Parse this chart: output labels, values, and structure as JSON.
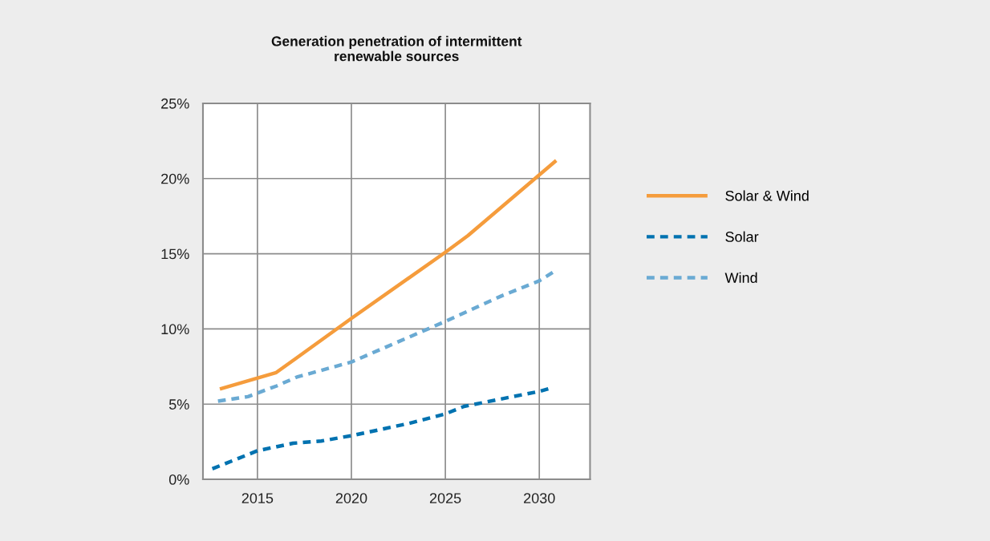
{
  "chart_data": {
    "type": "line",
    "title": "Generation penetration of intermittent\nrenewable sources",
    "xlim": [
      2012.1,
      2032.7
    ],
    "xticks": [
      2015,
      2020,
      2025,
      2030
    ],
    "ylim": [
      0,
      25
    ],
    "yticks": [
      {
        "value": 0,
        "label": "0%"
      },
      {
        "value": 5,
        "label": "5%"
      },
      {
        "value": 10,
        "label": "10%"
      },
      {
        "value": 15,
        "label": "15%"
      },
      {
        "value": 20,
        "label": "20%"
      },
      {
        "value": 25,
        "label": "25%"
      }
    ],
    "grid": true,
    "legend": "right",
    "marker": "none",
    "series": [
      {
        "name": "Solar & Wind",
        "color": "#f59c3c",
        "line_style": "solid",
        "x": [
          2013,
          2016,
          2017,
          2020,
          2025,
          2026.2,
          2030.9
        ],
        "values": [
          6.0,
          7.1,
          8.0,
          10.7,
          15.1,
          16.2,
          21.2
        ]
      },
      {
        "name": "Solar",
        "color": "#0072b0",
        "line_style": "dashed",
        "x": [
          2012.6,
          2015,
          2016.9,
          2018.4,
          2020,
          2023,
          2025,
          2026,
          2030,
          2030.7
        ],
        "values": [
          0.7,
          1.9,
          2.4,
          2.55,
          2.9,
          3.7,
          4.35,
          4.85,
          5.85,
          6.1
        ]
      },
      {
        "name": "Wind",
        "color": "#6aaad3",
        "line_style": "dashed",
        "x": [
          2012.9,
          2014.5,
          2016,
          2017.1,
          2020,
          2025,
          2028,
          2030,
          2030.9
        ],
        "values": [
          5.2,
          5.5,
          6.2,
          6.8,
          7.8,
          10.5,
          12.2,
          13.2,
          13.9
        ]
      }
    ]
  }
}
